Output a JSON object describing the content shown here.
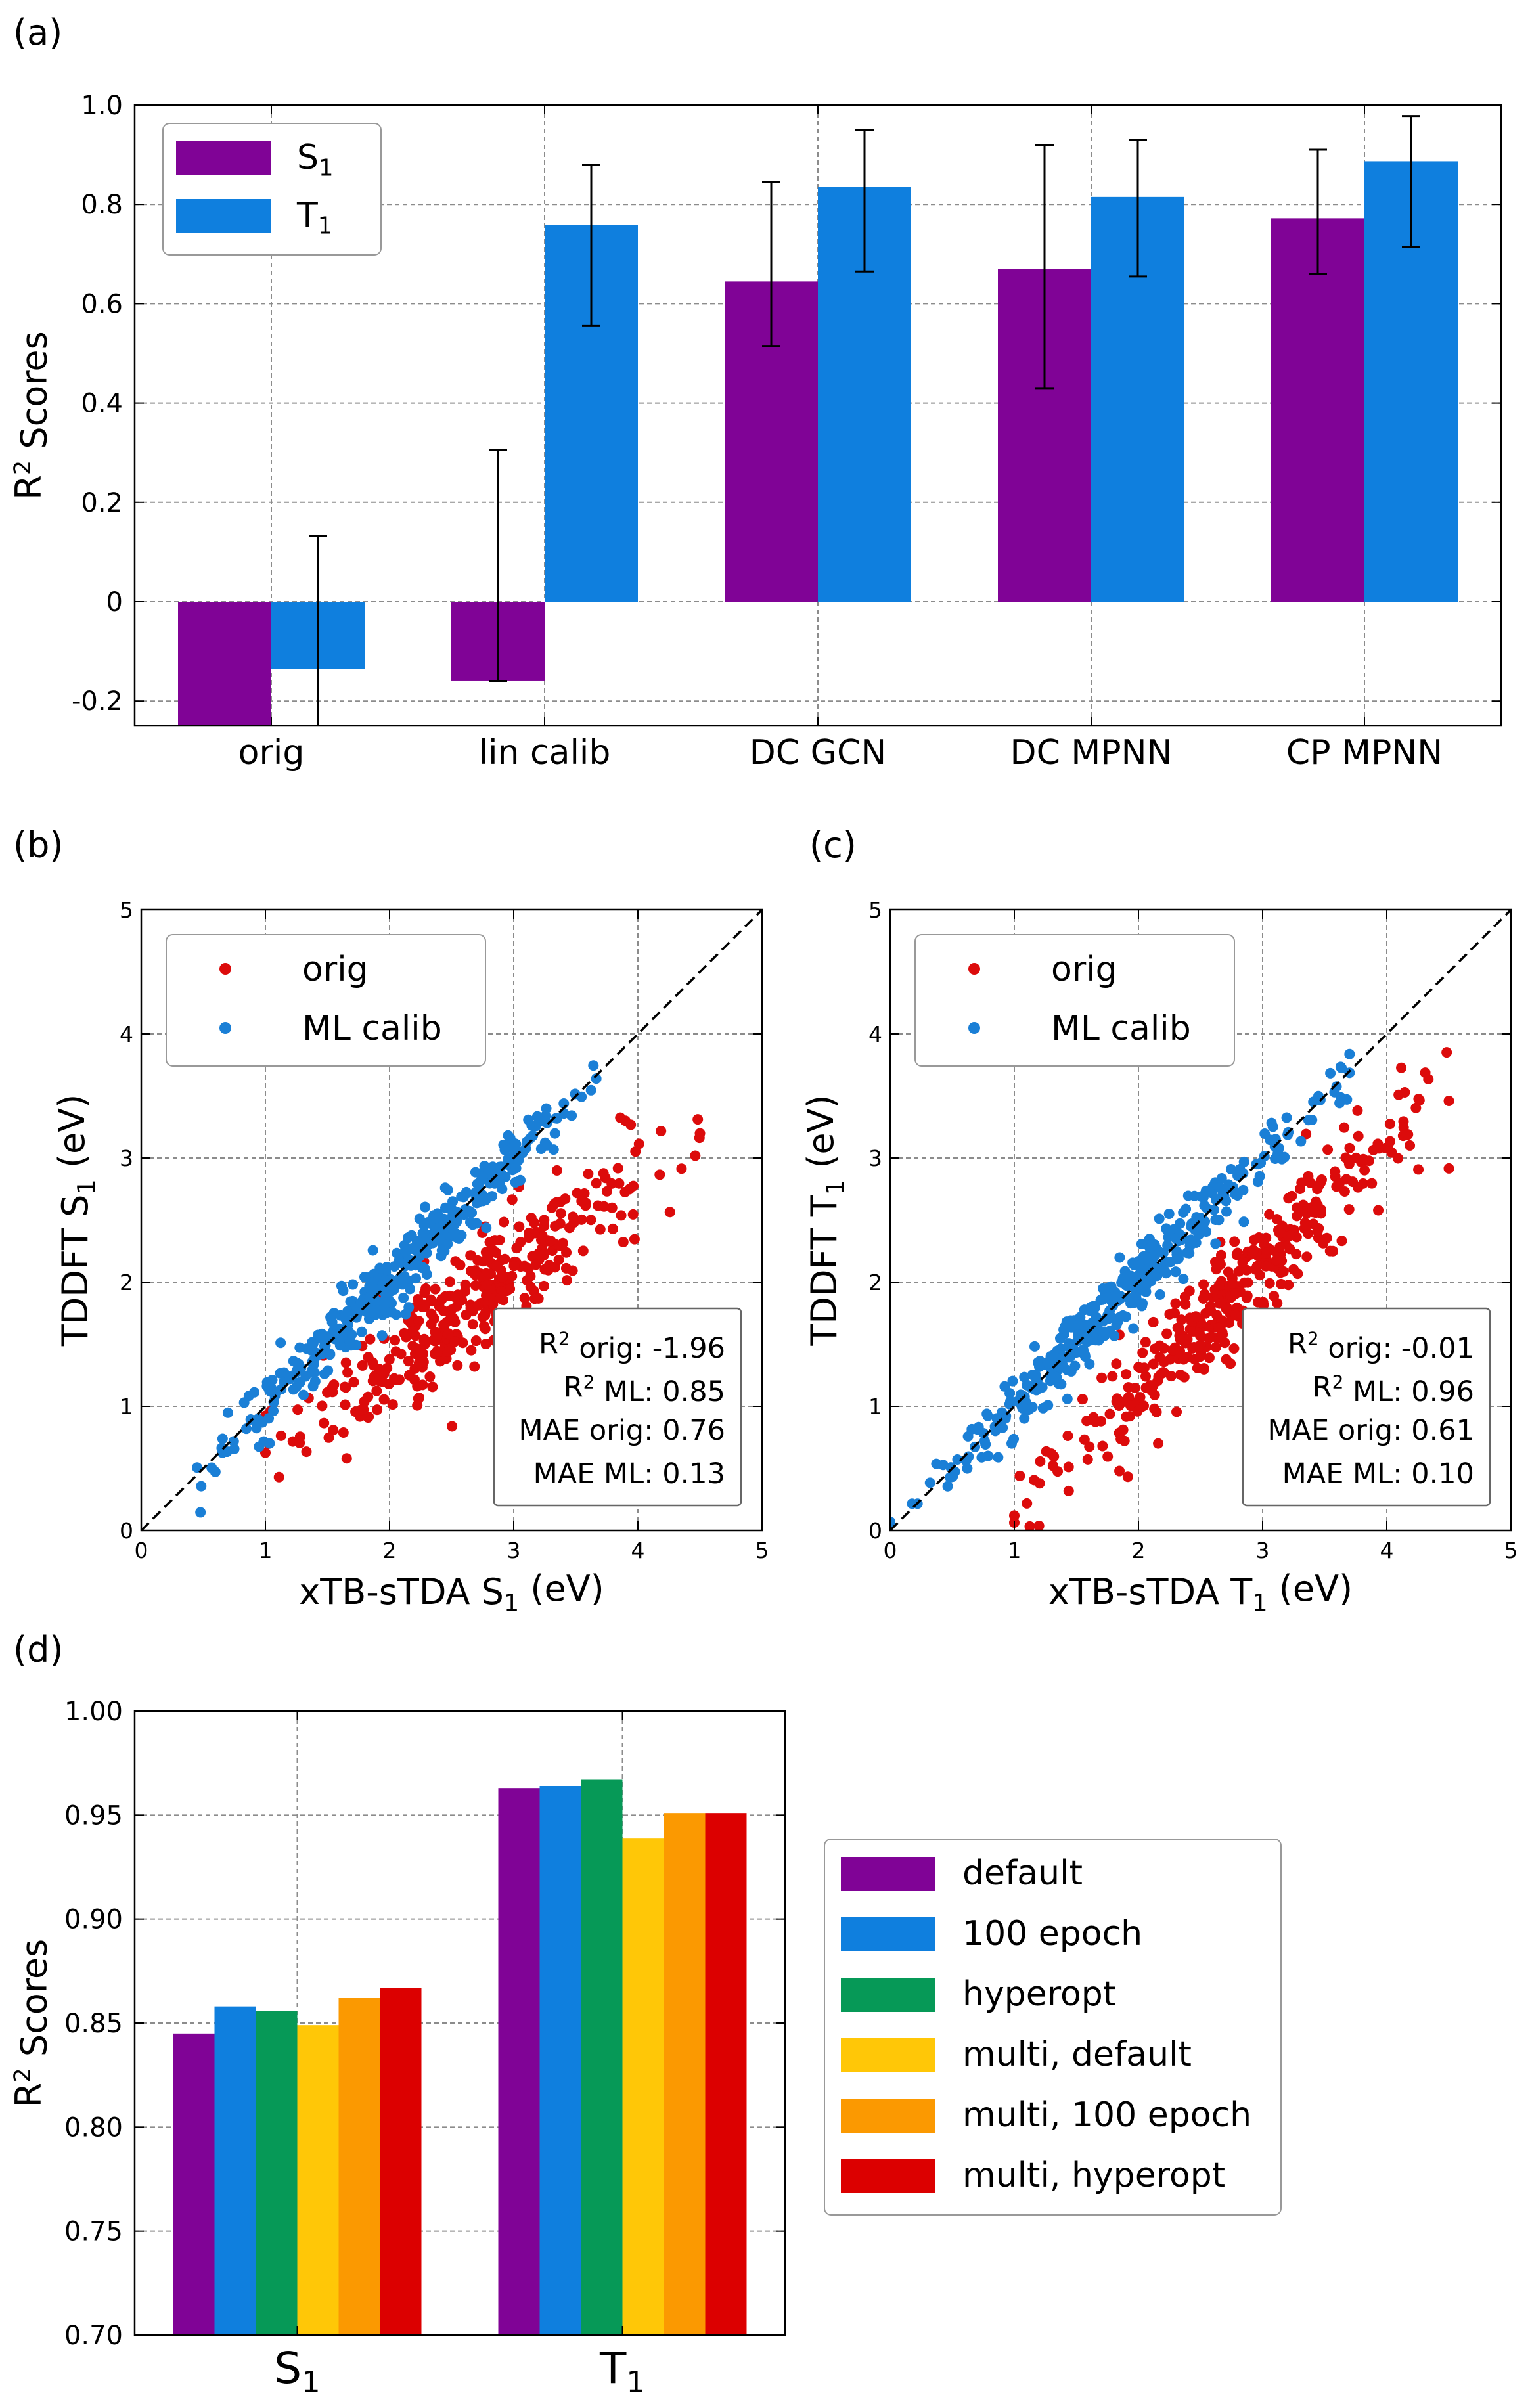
{
  "panels": {
    "a": "(a)",
    "b": "(b)",
    "c": "(c)",
    "d": "(d)"
  },
  "chart_data": [
    {
      "id": "a",
      "type": "bar",
      "ylabel": "R² Scores",
      "ylim": [
        -0.25,
        1.0
      ],
      "yticks": [
        -0.2,
        0,
        0.2,
        0.4,
        0.6,
        0.8,
        1.0
      ],
      "ytick_labels": [
        "-0.2",
        "0",
        "0.2",
        "0.4",
        "0.6",
        "0.8",
        "1.0"
      ],
      "categories": [
        "orig",
        "lin calib",
        "DC GCN",
        "DC MPNN",
        "CP MPNN"
      ],
      "series": [
        {
          "name": "S₁",
          "color": "#800396",
          "values": [
            -0.26,
            -0.16,
            0.645,
            0.67,
            0.772
          ],
          "err_low": [
            null,
            -0.16,
            0.515,
            0.43,
            0.66
          ],
          "err_high": [
            null,
            0.305,
            0.845,
            0.92,
            0.91
          ]
        },
        {
          "name": "T₁",
          "color": "#0f7fde",
          "values": [
            -0.135,
            0.758,
            0.835,
            0.815,
            0.887
          ],
          "err_low": [
            -0.25,
            0.555,
            0.665,
            0.655,
            0.715
          ],
          "err_high": [
            0.133,
            0.88,
            0.95,
            0.93,
            0.978
          ]
        }
      ],
      "legend": "top-left",
      "grid": true
    },
    {
      "id": "b",
      "type": "scatter",
      "xlabel": "xTB-sTDA S₁ (eV)",
      "ylabel": "TDDFT S₁ (eV)",
      "xlim": [
        0,
        5
      ],
      "ylim": [
        0,
        5
      ],
      "ticks": [
        "0",
        "1",
        "2",
        "3",
        "4",
        "5"
      ],
      "series": [
        {
          "name": "orig",
          "color": "#dc0b0b",
          "n": 360,
          "x_range": [
            1.0,
            4.5
          ],
          "trend_slope": 0.75,
          "trend_intercept": -0.15
        },
        {
          "name": "ML calib",
          "color": "#1a7fd6",
          "n": 380,
          "x_range": [
            0.45,
            3.85
          ],
          "trend_slope": 1.0,
          "trend_intercept": 0.0
        }
      ],
      "stats": [
        {
          "label": "R² orig:",
          "value": "-1.96"
        },
        {
          "label": "R² ML:",
          "value": "0.85"
        },
        {
          "label": "MAE orig:",
          "value": "0.76"
        },
        {
          "label": "MAE ML:",
          "value": "0.13"
        }
      ],
      "legend": "top-left",
      "grid": true
    },
    {
      "id": "c",
      "type": "scatter",
      "xlabel": "xTB-sTDA T₁ (eV)",
      "ylabel": "TDDFT T₁ (eV)",
      "xlim": [
        0,
        5
      ],
      "ylim": [
        0,
        5
      ],
      "ticks": [
        "0",
        "1",
        "2",
        "3",
        "4",
        "5"
      ],
      "series": [
        {
          "name": "orig",
          "color": "#dc0b0b",
          "n": 360,
          "x_range": [
            1.0,
            4.5
          ],
          "trend_slope": 1.0,
          "trend_intercept": -0.85
        },
        {
          "name": "ML calib",
          "color": "#1a7fd6",
          "n": 380,
          "x_range": [
            0.0,
            3.7
          ],
          "trend_slope": 1.0,
          "trend_intercept": 0.0
        }
      ],
      "stats": [
        {
          "label": "R² orig:",
          "value": "-0.01"
        },
        {
          "label": "R² ML:",
          "value": "0.96"
        },
        {
          "label": "MAE orig:",
          "value": "0.61"
        },
        {
          "label": "MAE ML:",
          "value": "0.10"
        }
      ],
      "legend": "top-left",
      "grid": true
    },
    {
      "id": "d",
      "type": "bar",
      "ylabel": "R² Scores",
      "ylim": [
        0.7,
        1.0
      ],
      "yticks": [
        0.7,
        0.75,
        0.8,
        0.85,
        0.9,
        0.95,
        1.0
      ],
      "ytick_labels": [
        "0.70",
        "0.75",
        "0.80",
        "0.85",
        "0.90",
        "0.95",
        "1.00"
      ],
      "categories": [
        "S₁",
        "T₁"
      ],
      "series": [
        {
          "name": "default",
          "color": "#800396",
          "values": [
            0.845,
            0.963
          ]
        },
        {
          "name": "100 epoch",
          "color": "#0f7fde",
          "values": [
            0.858,
            0.964
          ]
        },
        {
          "name": "hyperopt",
          "color": "#069957",
          "values": [
            0.856,
            0.967
          ]
        },
        {
          "name": "multi, default",
          "color": "#ffc707",
          "values": [
            0.849,
            0.939
          ]
        },
        {
          "name": "multi, 100 epoch",
          "color": "#fb9901",
          "values": [
            0.862,
            0.951
          ]
        },
        {
          "name": "multi, hyperopt",
          "color": "#dc0000",
          "values": [
            0.867,
            0.951
          ]
        }
      ],
      "legend": "right-outside",
      "grid": true
    }
  ]
}
